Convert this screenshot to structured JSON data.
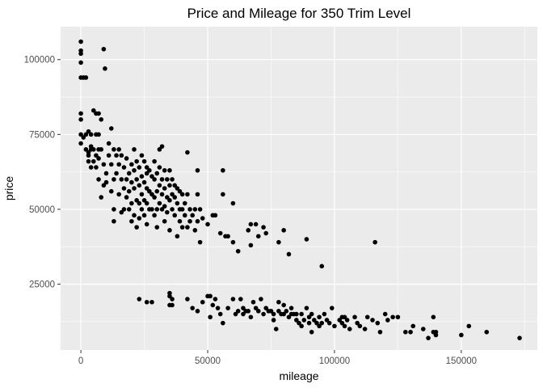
{
  "chart_data": {
    "type": "scatter",
    "title": "Price and Mileage for 350 Trim Level",
    "xlabel": "mileage",
    "ylabel": "price",
    "xlim": [
      -8000,
      180000
    ],
    "ylim": [
      3000,
      111000
    ],
    "x_ticks": [
      {
        "value": 0,
        "label": "0"
      },
      {
        "value": 50000,
        "label": "50000"
      },
      {
        "value": 100000,
        "label": "100000"
      },
      {
        "value": 150000,
        "label": "150000"
      }
    ],
    "y_ticks": [
      {
        "value": 25000,
        "label": "25000"
      },
      {
        "value": 50000,
        "label": "50000"
      },
      {
        "value": 75000,
        "label": "75000"
      },
      {
        "value": 100000,
        "label": "100000"
      }
    ],
    "grid": true,
    "colors": {
      "panel": "#ebebeb",
      "grid": "#ffffff",
      "point": "#000000"
    },
    "points": [
      [
        0,
        106000
      ],
      [
        0,
        103000
      ],
      [
        0,
        102000
      ],
      [
        0,
        99000
      ],
      [
        0,
        94000
      ],
      [
        1000,
        94000
      ],
      [
        2000,
        94000
      ],
      [
        9000,
        103500
      ],
      [
        9500,
        97000
      ],
      [
        0,
        82000
      ],
      [
        0,
        80000
      ],
      [
        0,
        75000
      ],
      [
        0,
        72000
      ],
      [
        1000,
        74000
      ],
      [
        2000,
        75000
      ],
      [
        3000,
        76000
      ],
      [
        4000,
        75000
      ],
      [
        5000,
        83000
      ],
      [
        6000,
        82000
      ],
      [
        7000,
        82000
      ],
      [
        8000,
        80000
      ],
      [
        6000,
        75000
      ],
      [
        7000,
        75000
      ],
      [
        2000,
        70000
      ],
      [
        3000,
        69000
      ],
      [
        3000,
        68000
      ],
      [
        3000,
        66000
      ],
      [
        4000,
        71000
      ],
      [
        4000,
        70000
      ],
      [
        4000,
        64000
      ],
      [
        5000,
        70000
      ],
      [
        5000,
        66000
      ],
      [
        6000,
        68000
      ],
      [
        6000,
        64000
      ],
      [
        7000,
        70000
      ],
      [
        7000,
        67000
      ],
      [
        7000,
        60000
      ],
      [
        8000,
        70000
      ],
      [
        8000,
        54000
      ],
      [
        9000,
        65000
      ],
      [
        9000,
        58000
      ],
      [
        10000,
        62000
      ],
      [
        10000,
        59000
      ],
      [
        11000,
        72000
      ],
      [
        11000,
        68000
      ],
      [
        12000,
        77000
      ],
      [
        12000,
        65000
      ],
      [
        12000,
        56000
      ],
      [
        13000,
        70000
      ],
      [
        13000,
        60000
      ],
      [
        13000,
        50000
      ],
      [
        13000,
        46000
      ],
      [
        14000,
        68000
      ],
      [
        14000,
        62000
      ],
      [
        15000,
        70000
      ],
      [
        15000,
        65000
      ],
      [
        15000,
        55000
      ],
      [
        16000,
        68000
      ],
      [
        16000,
        60000
      ],
      [
        16000,
        49000
      ],
      [
        17000,
        64000
      ],
      [
        17000,
        57000
      ],
      [
        17000,
        50000
      ],
      [
        18000,
        67000
      ],
      [
        18000,
        60000
      ],
      [
        18000,
        54000
      ],
      [
        19000,
        62000
      ],
      [
        19000,
        56000
      ],
      [
        19000,
        50000
      ],
      [
        20000,
        65000
      ],
      [
        20000,
        59000
      ],
      [
        20000,
        52000
      ],
      [
        20000,
        46000
      ],
      [
        21000,
        70000
      ],
      [
        21000,
        63000
      ],
      [
        21000,
        57000
      ],
      [
        21000,
        48000
      ],
      [
        22000,
        66000
      ],
      [
        22000,
        60000
      ],
      [
        22000,
        53000
      ],
      [
        22000,
        44000
      ],
      [
        23000,
        64000
      ],
      [
        23000,
        58000
      ],
      [
        23000,
        52000
      ],
      [
        23000,
        47000
      ],
      [
        24000,
        68000
      ],
      [
        24000,
        61000
      ],
      [
        24000,
        55000
      ],
      [
        24000,
        50000
      ],
      [
        25000,
        66000
      ],
      [
        25000,
        59000
      ],
      [
        25000,
        53000
      ],
      [
        25000,
        48000
      ],
      [
        26000,
        64000
      ],
      [
        26000,
        62000
      ],
      [
        26000,
        57000
      ],
      [
        26000,
        52000
      ],
      [
        26000,
        45000
      ],
      [
        27000,
        63000
      ],
      [
        27000,
        56000
      ],
      [
        27000,
        50000
      ],
      [
        28000,
        61000
      ],
      [
        28000,
        55000
      ],
      [
        28000,
        50000
      ],
      [
        29000,
        66000
      ],
      [
        29000,
        60000
      ],
      [
        29000,
        54000
      ],
      [
        29000,
        48000
      ],
      [
        30000,
        62000
      ],
      [
        30000,
        56000
      ],
      [
        30000,
        50000
      ],
      [
        30000,
        44000
      ],
      [
        31000,
        70000
      ],
      [
        31000,
        64000
      ],
      [
        31000,
        58000
      ],
      [
        31000,
        52000
      ],
      [
        32000,
        71000
      ],
      [
        32000,
        60000
      ],
      [
        32000,
        55000
      ],
      [
        32000,
        50000
      ],
      [
        33000,
        63000
      ],
      [
        33000,
        57000
      ],
      [
        33000,
        51000
      ],
      [
        33000,
        46000
      ],
      [
        34000,
        60000
      ],
      [
        34000,
        54000
      ],
      [
        34000,
        49000
      ],
      [
        35000,
        63000
      ],
      [
        35000,
        58000
      ],
      [
        35000,
        53000
      ],
      [
        35000,
        43000
      ],
      [
        36000,
        60000
      ],
      [
        36000,
        55000
      ],
      [
        36000,
        50000
      ],
      [
        37000,
        58000
      ],
      [
        37000,
        54000
      ],
      [
        37000,
        48000
      ],
      [
        38000,
        57000
      ],
      [
        38000,
        52000
      ],
      [
        38000,
        41000
      ],
      [
        39000,
        56000
      ],
      [
        39000,
        50000
      ],
      [
        39000,
        46000
      ],
      [
        40000,
        55000
      ],
      [
        40000,
        50000
      ],
      [
        40000,
        44000
      ],
      [
        41000,
        52000
      ],
      [
        41000,
        48000
      ],
      [
        42000,
        69000
      ],
      [
        42000,
        55000
      ],
      [
        42000,
        44000
      ],
      [
        43000,
        50000
      ],
      [
        43000,
        46000
      ],
      [
        44000,
        48000
      ],
      [
        45000,
        50000
      ],
      [
        45000,
        43000
      ],
      [
        46000,
        63000
      ],
      [
        46000,
        55000
      ],
      [
        46000,
        46000
      ],
      [
        47000,
        50000
      ],
      [
        47000,
        39000
      ],
      [
        48000,
        47000
      ],
      [
        50000,
        45000
      ],
      [
        52000,
        48000
      ],
      [
        53000,
        48000
      ],
      [
        55000,
        42000
      ],
      [
        56000,
        63000
      ],
      [
        56000,
        55000
      ],
      [
        57000,
        41000
      ],
      [
        58000,
        41000
      ],
      [
        60000,
        52000
      ],
      [
        60000,
        39000
      ],
      [
        62000,
        36000
      ],
      [
        66000,
        43000
      ],
      [
        67000,
        45000
      ],
      [
        67000,
        38000
      ],
      [
        69000,
        45000
      ],
      [
        70000,
        41000
      ],
      [
        72000,
        44000
      ],
      [
        73000,
        42000
      ],
      [
        78000,
        39000
      ],
      [
        80000,
        43000
      ],
      [
        82000,
        35000
      ],
      [
        89000,
        40000
      ],
      [
        95000,
        31000
      ],
      [
        116000,
        39000
      ],
      [
        23000,
        20000
      ],
      [
        26000,
        19000
      ],
      [
        28000,
        19000
      ],
      [
        35000,
        21000
      ],
      [
        35000,
        22000
      ],
      [
        36000,
        20000
      ],
      [
        35000,
        18000
      ],
      [
        36000,
        18000
      ],
      [
        42000,
        20000
      ],
      [
        44000,
        17000
      ],
      [
        46000,
        16000
      ],
      [
        48000,
        19000
      ],
      [
        50000,
        21000
      ],
      [
        51000,
        21000
      ],
      [
        51000,
        14000
      ],
      [
        52000,
        18000
      ],
      [
        53000,
        20000
      ],
      [
        54000,
        17000
      ],
      [
        55000,
        15000
      ],
      [
        56000,
        12000
      ],
      [
        58000,
        17000
      ],
      [
        60000,
        20000
      ],
      [
        61000,
        15000
      ],
      [
        62000,
        16000
      ],
      [
        63000,
        20000
      ],
      [
        64000,
        17000
      ],
      [
        64000,
        15000
      ],
      [
        65000,
        16000
      ],
      [
        66000,
        16000
      ],
      [
        67000,
        14000
      ],
      [
        68000,
        19000
      ],
      [
        69000,
        17000
      ],
      [
        70000,
        16000
      ],
      [
        71000,
        20000
      ],
      [
        72000,
        15000
      ],
      [
        73000,
        17000
      ],
      [
        74000,
        16000
      ],
      [
        75000,
        16000
      ],
      [
        76000,
        15000
      ],
      [
        76000,
        13000
      ],
      [
        77000,
        10000
      ],
      [
        78000,
        19000
      ],
      [
        78000,
        16000
      ],
      [
        79000,
        15000
      ],
      [
        80000,
        18000
      ],
      [
        80000,
        15000
      ],
      [
        81000,
        16000
      ],
      [
        82000,
        14000
      ],
      [
        83000,
        15000
      ],
      [
        83000,
        17000
      ],
      [
        84000,
        15000
      ],
      [
        85000,
        15000
      ],
      [
        85000,
        13000
      ],
      [
        86000,
        12000
      ],
      [
        87000,
        11000
      ],
      [
        87000,
        15000
      ],
      [
        88000,
        13000
      ],
      [
        89000,
        17000
      ],
      [
        90000,
        12000
      ],
      [
        90000,
        14000
      ],
      [
        91000,
        9000
      ],
      [
        91000,
        15000
      ],
      [
        92000,
        13000
      ],
      [
        93000,
        12000
      ],
      [
        94000,
        11000
      ],
      [
        94000,
        14000
      ],
      [
        95000,
        12000
      ],
      [
        96000,
        15000
      ],
      [
        97000,
        13000
      ],
      [
        98000,
        12000
      ],
      [
        99000,
        17000
      ],
      [
        100000,
        11000
      ],
      [
        102000,
        13000
      ],
      [
        103000,
        14000
      ],
      [
        103000,
        12000
      ],
      [
        104000,
        11000
      ],
      [
        104000,
        14000
      ],
      [
        105000,
        13000
      ],
      [
        106000,
        10000
      ],
      [
        108000,
        14000
      ],
      [
        109000,
        12000
      ],
      [
        110000,
        11000
      ],
      [
        112000,
        10000
      ],
      [
        113000,
        14000
      ],
      [
        115000,
        13000
      ],
      [
        117000,
        12000
      ],
      [
        118000,
        9000
      ],
      [
        120000,
        15000
      ],
      [
        121000,
        13000
      ],
      [
        123000,
        14000
      ],
      [
        125000,
        14000
      ],
      [
        128000,
        9000
      ],
      [
        130000,
        9000
      ],
      [
        131000,
        11000
      ],
      [
        135000,
        10000
      ],
      [
        137000,
        7000
      ],
      [
        139000,
        9000
      ],
      [
        139000,
        14000
      ],
      [
        140000,
        8000
      ],
      [
        140000,
        9000
      ],
      [
        150000,
        8000
      ],
      [
        153000,
        11000
      ],
      [
        160000,
        9000
      ],
      [
        173000,
        7000
      ]
    ]
  }
}
